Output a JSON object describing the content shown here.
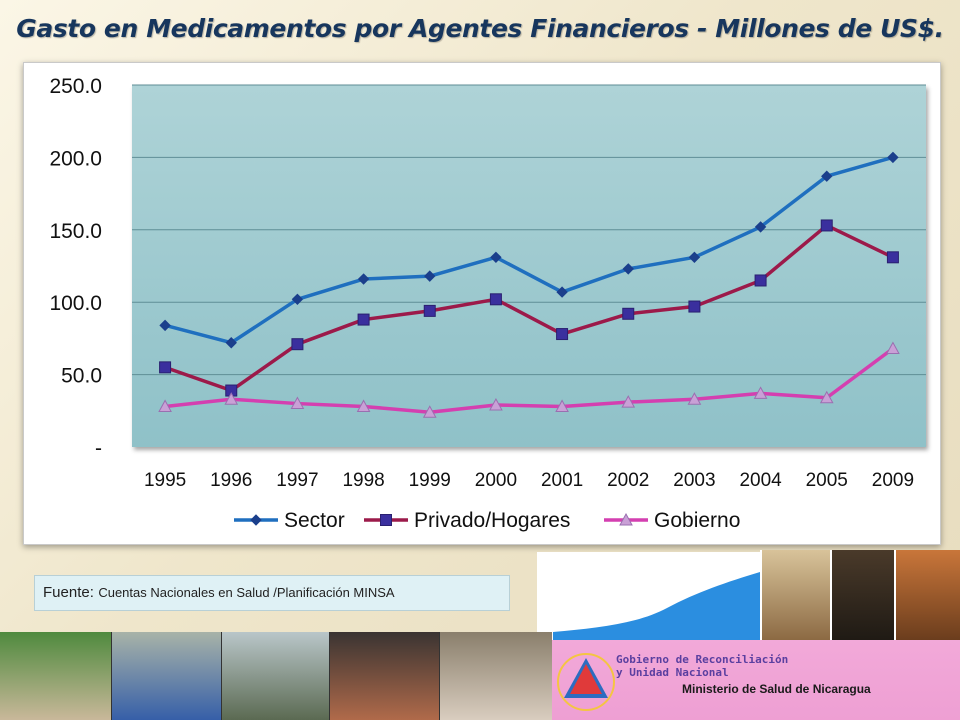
{
  "title": "Gasto en Medicamentos por Agentes Financieros  - Millones de US$.",
  "chart_data": {
    "type": "line",
    "title": "",
    "xlabel": "",
    "ylabel": "",
    "categories": [
      "1995",
      "1996",
      "1997",
      "1998",
      "1999",
      "2000",
      "2001",
      "2002",
      "2003",
      "2004",
      "2005",
      "2009"
    ],
    "ylim": [
      0,
      250
    ],
    "yticks": [
      0,
      50,
      100,
      150,
      200,
      250
    ],
    "ytick_labels": [
      "-",
      "50.0",
      "100.0",
      "150.0",
      "200.0",
      "250.0"
    ],
    "grid": true,
    "legend_position": "bottom",
    "series": [
      {
        "name": "Sector",
        "color": "#1f6fbf",
        "marker": "diamond",
        "values": [
          84,
          72,
          102,
          116,
          118,
          131,
          107,
          123,
          131,
          152,
          187,
          200
        ]
      },
      {
        "name": "Privado/Hogares",
        "color": "#9c1a4a",
        "marker": "square",
        "values": [
          55,
          39,
          71,
          88,
          94,
          102,
          78,
          92,
          97,
          115,
          153,
          131
        ]
      },
      {
        "name": "Gobierno",
        "color": "#d43fb0",
        "marker": "triangle",
        "values": [
          28,
          33,
          30,
          28,
          24,
          29,
          28,
          31,
          33,
          37,
          34,
          68
        ]
      }
    ],
    "plot_background": "#9dc9cf"
  },
  "source": {
    "label": "Fuente:",
    "text": "Cuentas Nacionales en Salud /Planificación MINSA"
  },
  "footer": {
    "gov_line1": "Gobierno de Reconciliación",
    "gov_line2": "y Unidad Nacional",
    "ministry": "Ministerio de Salud de Nicaragua"
  }
}
